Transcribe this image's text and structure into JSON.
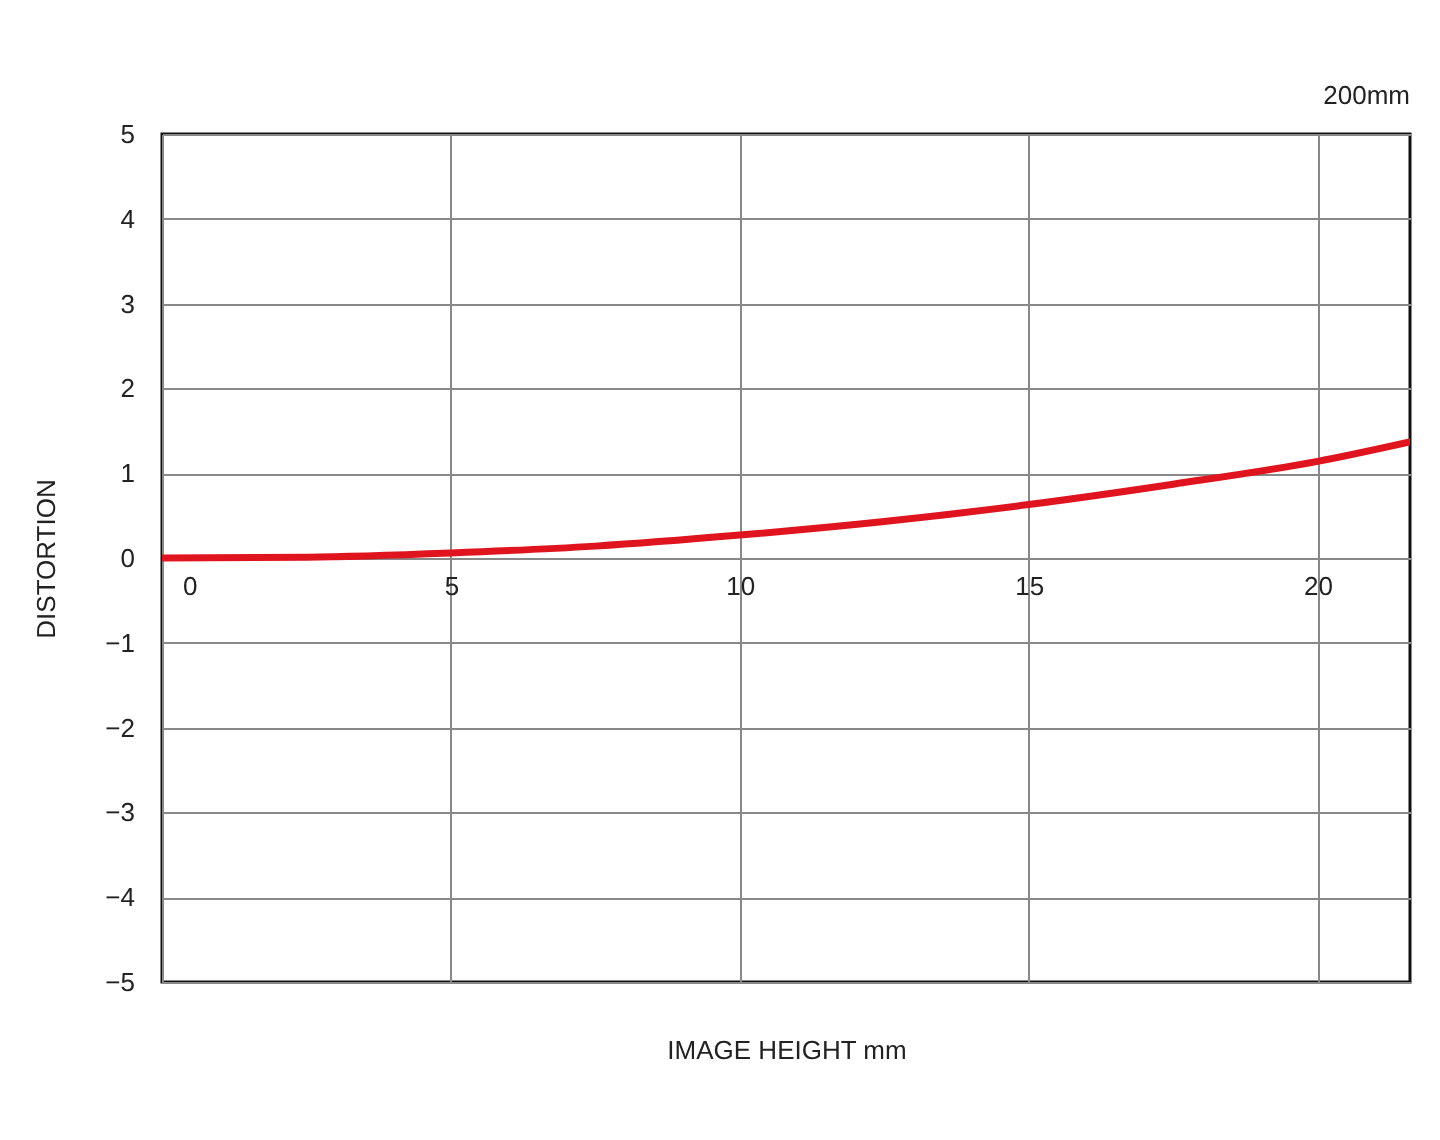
{
  "chart_data": {
    "type": "line",
    "title": "200mm",
    "xlabel": "IMAGE HEIGHT   mm",
    "ylabel": "DISTORTION",
    "x": [
      0,
      2.5,
      5,
      7.5,
      10,
      12.5,
      15,
      17.5,
      20,
      21.6
    ],
    "series": [
      {
        "color": "#e0141e",
        "values": [
          0,
          0.01,
          0.06,
          0.14,
          0.27,
          0.43,
          0.63,
          0.87,
          1.14,
          1.37
        ]
      }
    ],
    "xlim": [
      0,
      21.6
    ],
    "xticks": [
      0,
      5,
      10,
      15,
      20
    ],
    "ylim": [
      -5,
      5
    ],
    "yticks": [
      -5,
      -4,
      -3,
      -2,
      -1,
      0,
      1,
      2,
      3,
      4,
      5
    ],
    "grid": true,
    "legend": false,
    "marker": "none",
    "line_style": "solid"
  }
}
